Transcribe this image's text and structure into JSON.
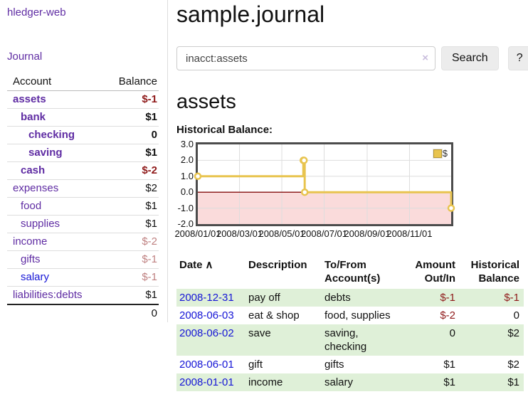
{
  "app": {
    "name": "hledger-web"
  },
  "colors": {
    "link_purple": "#5f2ca3",
    "link_blue": "#1515d6",
    "negative_red": "#8f1a1a",
    "muted_negative_red": "#bf8181",
    "row_stripe_green": "#dff0d8",
    "chart_line_gold": "#e8c44f",
    "chart_negative_fill_pink": "#fadbdb",
    "chart_zero_line_red": "#8e1f1f"
  },
  "sidebar": {
    "journal_link": "Journal",
    "table": {
      "headers": [
        "Account",
        "Balance"
      ],
      "rows": [
        {
          "account": "assets",
          "indent": 1,
          "bold": true,
          "link": "purple",
          "balance": "$-1",
          "balance_class": "neg"
        },
        {
          "account": "bank",
          "indent": 2,
          "bold": true,
          "link": "purple",
          "balance": "$1",
          "balance_class": ""
        },
        {
          "account": "checking",
          "indent": 3,
          "bold": true,
          "link": "purple",
          "balance": "0",
          "balance_class": ""
        },
        {
          "account": "saving",
          "indent": 3,
          "bold": true,
          "link": "purple",
          "balance": "$1",
          "balance_class": ""
        },
        {
          "account": "cash",
          "indent": 2,
          "bold": true,
          "link": "purple",
          "balance": "$-2",
          "balance_class": "neg"
        },
        {
          "account": "expenses",
          "indent": 1,
          "bold": false,
          "link": "purple",
          "balance": "$2",
          "balance_class": ""
        },
        {
          "account": "food",
          "indent": 2,
          "bold": false,
          "link": "purple",
          "balance": "$1",
          "balance_class": ""
        },
        {
          "account": "supplies",
          "indent": 2,
          "bold": false,
          "link": "purple",
          "balance": "$1",
          "balance_class": ""
        },
        {
          "account": "income",
          "indent": 1,
          "bold": false,
          "link": "purple",
          "balance": "$-2",
          "balance_class": "mutedneg"
        },
        {
          "account": "gifts",
          "indent": 2,
          "bold": false,
          "link": "purple",
          "balance": "$-1",
          "balance_class": "mutedneg"
        },
        {
          "account": "salary",
          "indent": 2,
          "bold": false,
          "link": "blue",
          "balance": "$-1",
          "balance_class": "mutedneg"
        },
        {
          "account": "liabilities:debts",
          "indent": 1,
          "bold": false,
          "link": "purple",
          "balance": "$1",
          "balance_class": ""
        }
      ],
      "total": "0"
    }
  },
  "header": {
    "title": "sample.journal"
  },
  "search": {
    "value": "inacct:assets",
    "clear_icon": "×",
    "button_label": "Search",
    "help_label": "?"
  },
  "account_page": {
    "heading": "assets",
    "chart_label": "Historical Balance:"
  },
  "chart_data": {
    "type": "line",
    "title": "Historical Balance",
    "step": "after",
    "legend": [
      {
        "label": "$",
        "color": "#e8c44f"
      }
    ],
    "legend_position": "top-right",
    "grid": true,
    "ylim": [
      -2,
      3
    ],
    "y_ticks": [
      {
        "label": "3.0",
        "value": 3
      },
      {
        "label": "2.0",
        "value": 2
      },
      {
        "label": "1.0",
        "value": 1
      },
      {
        "label": "0.0",
        "value": 0
      },
      {
        "label": "-1.0",
        "value": -1
      },
      {
        "label": "-2.0",
        "value": -2
      }
    ],
    "x_ticks": [
      {
        "label": "2008/01/01",
        "day": 0
      },
      {
        "label": "2008/03/01",
        "day": 60
      },
      {
        "label": "2008/05/01",
        "day": 121
      },
      {
        "label": "2008/07/01",
        "day": 182
      },
      {
        "label": "2008/09/01",
        "day": 244
      },
      {
        "label": "2008/11/01",
        "day": 305
      }
    ],
    "x_range_days": [
      0,
      365
    ],
    "series": [
      {
        "name": "$",
        "points": [
          {
            "date": "2008-01-01",
            "day": 0,
            "value": 1
          },
          {
            "date": "2008-06-01",
            "day": 152,
            "value": 2
          },
          {
            "date": "2008-06-02",
            "day": 153,
            "value": 2
          },
          {
            "date": "2008-06-03",
            "day": 154,
            "value": 0
          },
          {
            "date": "2008-12-31",
            "day": 365,
            "value": -1
          }
        ]
      }
    ]
  },
  "register": {
    "columns": [
      {
        "label": "Date",
        "sort_icon": "∧",
        "align": "left"
      },
      {
        "label": "Description",
        "align": "left"
      },
      {
        "label": "To/From Account(s)",
        "align": "left"
      },
      {
        "label": "Amount Out/In",
        "align": "right"
      },
      {
        "label": "Historical Balance",
        "align": "right"
      }
    ],
    "rows": [
      {
        "date": "2008-12-31",
        "description": "pay off",
        "accounts": "debts",
        "amount": "$-1",
        "amount_class": "neg",
        "balance": "$-1",
        "balance_class": "neg",
        "striped": true
      },
      {
        "date": "2008-06-03",
        "description": "eat & shop",
        "accounts": "food, supplies",
        "amount": "$-2",
        "amount_class": "neg",
        "balance": "0",
        "balance_class": "",
        "striped": false
      },
      {
        "date": "2008-06-02",
        "description": "save",
        "accounts": "saving, checking",
        "amount": "0",
        "amount_class": "",
        "balance": "$2",
        "balance_class": "",
        "striped": true
      },
      {
        "date": "2008-06-01",
        "description": "gift",
        "accounts": "gifts",
        "amount": "$1",
        "amount_class": "",
        "balance": "$2",
        "balance_class": "",
        "striped": false
      },
      {
        "date": "2008-01-01",
        "description": "income",
        "accounts": "salary",
        "amount": "$1",
        "amount_class": "",
        "balance": "$1",
        "balance_class": "",
        "striped": true
      }
    ]
  }
}
